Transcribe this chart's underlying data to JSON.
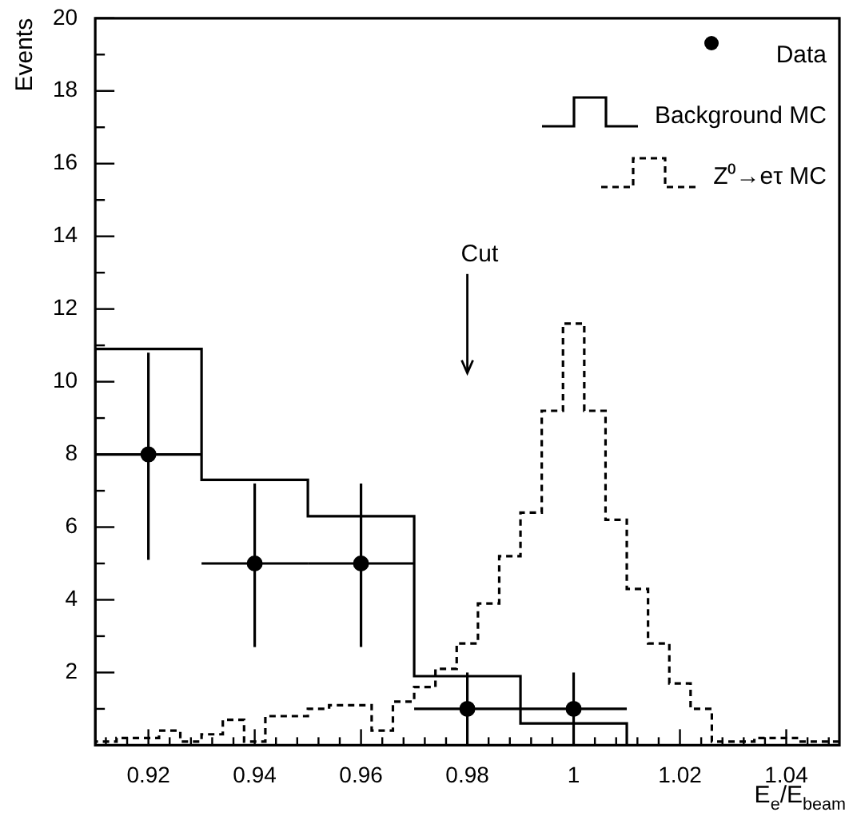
{
  "chart_data": {
    "type": "histogram",
    "ylabel": "Events",
    "xlabel": "E$_{e}$/E$_{beam}$",
    "xlim": [
      0.91,
      1.05
    ],
    "xticks": [
      {
        "value": 0.912,
        "label": null
      },
      {
        "value": 0.916,
        "label": null
      },
      0.92,
      {
        "value": 0.924,
        "label": null
      },
      {
        "value": 0.928,
        "label": null
      },
      {
        "value": 0.932,
        "label": null
      },
      {
        "value": 0.936,
        "label": null
      },
      0.94,
      {
        "value": 0.944,
        "label": null
      },
      {
        "value": 0.948,
        "label": null
      },
      {
        "value": 0.952,
        "label": null
      },
      {
        "value": 0.956,
        "label": null
      },
      0.96,
      {
        "value": 0.964,
        "label": null
      },
      {
        "value": 0.968,
        "label": null
      },
      {
        "value": 0.972,
        "label": null
      },
      {
        "value": 0.976,
        "label": null
      },
      0.98,
      {
        "value": 0.984,
        "label": null
      },
      {
        "value": 0.988,
        "label": null
      },
      {
        "value": 0.992,
        "label": null
      },
      {
        "value": 0.996,
        "label": null
      },
      1,
      {
        "value": 1.004,
        "label": null
      },
      {
        "value": 1.008,
        "label": null
      },
      {
        "value": 1.012,
        "label": null
      },
      {
        "value": 1.016,
        "label": null
      },
      1.02,
      {
        "value": 1.024,
        "label": null
      },
      {
        "value": 1.028,
        "label": null
      },
      {
        "value": 1.032,
        "label": null
      },
      {
        "value": 1.036,
        "label": null
      },
      1.04,
      {
        "value": 1.044,
        "label": null
      },
      {
        "value": 1.048,
        "label": null
      }
    ],
    "ylim": [
      0,
      20
    ],
    "yticks": [
      {
        "value": 1,
        "label": null
      },
      2,
      {
        "value": 3,
        "label": null
      },
      4,
      {
        "value": 5,
        "label": null
      },
      6,
      {
        "value": 7,
        "label": null
      },
      8,
      {
        "value": 9,
        "label": null
      },
      10,
      {
        "value": 11,
        "label": null
      },
      12,
      {
        "value": 13,
        "label": null
      },
      14,
      {
        "value": 15,
        "label": null
      },
      16,
      {
        "value": 17,
        "label": null
      },
      18,
      {
        "value": 19,
        "label": null
      },
      20
    ],
    "legend": "top right",
    "marker": "circle",
    "annotations": [
      "Cut"
    ],
    "series": [
      {
        "name": "Data",
        "type": "scatter",
        "color": "#000000",
        "x": [
          0.92,
          0.94,
          0.96,
          0.98,
          1
        ],
        "values": [
          8,
          5,
          5,
          1,
          1
        ],
        "errors": [
          [
            5.1,
            10.8
          ],
          [
            2.7,
            7.2
          ],
          [
            2.7,
            7.2
          ],
          [
            0,
            2
          ],
          [
            0,
            2
          ]
        ],
        "xerrors": [
          0.01,
          0.01,
          0.01,
          0.01,
          0.01
        ]
      },
      {
        "name": "Background MC",
        "color": "#000000",
        "line_style": "solid",
        "bins": [
          0.91,
          0.93,
          0.95,
          0.97,
          0.99,
          1.01
        ],
        "values": [
          10.9,
          7.3,
          6.3,
          1.9,
          0.6
        ]
      },
      {
        "name": "Z⁰→eτ MC",
        "color": "#000000",
        "line_style": "dashed",
        "bins": [
          0.91,
          0.914,
          0.918,
          0.922,
          0.926,
          0.93,
          0.934,
          0.938,
          0.942,
          0.946,
          0.95,
          0.954,
          0.958,
          0.962,
          0.966,
          0.97,
          0.974,
          0.978,
          0.982,
          0.986,
          0.99,
          0.994,
          0.998,
          1.002,
          1.006,
          1.01,
          1.014,
          1.018,
          1.022,
          1.026,
          1.03,
          1.034,
          1.038,
          1.042,
          1.046,
          1.05
        ],
        "values": [
          0.1,
          0.2,
          0.2,
          0.4,
          0.1,
          0.3,
          0.7,
          0.1,
          0.8,
          0.8,
          1.0,
          1.1,
          1.1,
          0.4,
          1.2,
          1.6,
          2.1,
          2.8,
          3.9,
          5.2,
          6.4,
          9.2,
          11.6,
          9.2,
          6.2,
          4.3,
          2.8,
          1.7,
          1.0,
          0.1,
          0.1,
          0.2,
          0.2,
          0.1,
          0.1
        ]
      }
    ]
  }
}
